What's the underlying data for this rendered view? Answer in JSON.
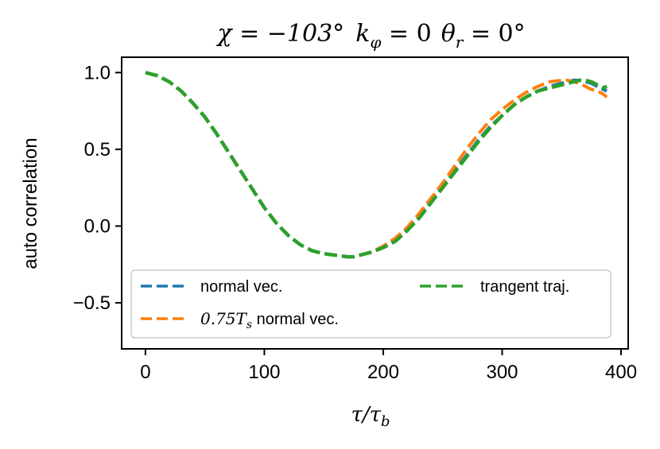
{
  "chart_data": {
    "type": "line",
    "title": "χ = −103° k_φ = 0 θ_r = 0°",
    "title_parts": {
      "chi": "χ = −103°",
      "k": "k",
      "k_sub": "φ",
      "k_val": " = 0",
      "theta": "θ",
      "theta_sub": "r",
      "theta_val": " = 0°"
    },
    "xlabel": "τ/τ",
    "xlabel_sub": "b",
    "ylabel": "auto correlation",
    "xlim": [
      -20,
      406
    ],
    "ylim": [
      -0.8,
      1.1
    ],
    "xticks": [
      0,
      100,
      200,
      300,
      400
    ],
    "xtick_labels": [
      "0",
      "100",
      "200",
      "300",
      "400"
    ],
    "yticks": [
      -0.5,
      0.0,
      0.5,
      1.0
    ],
    "ytick_labels": [
      "−0.5",
      "0.0",
      "0.5",
      "1.0"
    ],
    "grid": false,
    "legend_position": "lower-center",
    "series": [
      {
        "name": "normal vec.",
        "color": "#1f77b4",
        "style": "dashed",
        "x": [
          0,
          10,
          20,
          30,
          40,
          50,
          60,
          70,
          80,
          90,
          100,
          110,
          120,
          130,
          140,
          150,
          160,
          170,
          175,
          180,
          190,
          200,
          210,
          220,
          230,
          240,
          250,
          260,
          270,
          280,
          290,
          300,
          310,
          320,
          330,
          340,
          350,
          360,
          365,
          370,
          375,
          380,
          385,
          388
        ],
        "y": [
          1.0,
          0.98,
          0.94,
          0.88,
          0.8,
          0.71,
          0.6,
          0.48,
          0.36,
          0.24,
          0.12,
          0.02,
          -0.06,
          -0.12,
          -0.16,
          -0.18,
          -0.19,
          -0.2,
          -0.2,
          -0.19,
          -0.17,
          -0.14,
          -0.09,
          -0.02,
          0.06,
          0.16,
          0.26,
          0.36,
          0.46,
          0.56,
          0.65,
          0.72,
          0.79,
          0.84,
          0.88,
          0.91,
          0.93,
          0.95,
          0.95,
          0.94,
          0.93,
          0.91,
          0.89,
          0.88
        ]
      },
      {
        "name": "0.75T_s normal vec.",
        "name_parts": {
          "num": "0.75",
          "var": "T",
          "sub": "s",
          "rest": " normal vec."
        },
        "color": "#ff7f0e",
        "style": "dashed",
        "x": [
          0,
          10,
          20,
          30,
          40,
          50,
          60,
          70,
          80,
          90,
          100,
          110,
          120,
          130,
          140,
          150,
          160,
          170,
          175,
          180,
          190,
          200,
          210,
          220,
          230,
          240,
          250,
          260,
          270,
          280,
          290,
          300,
          310,
          320,
          330,
          340,
          350,
          355,
          360,
          365,
          370,
          375,
          380,
          385,
          388
        ],
        "y": [
          1.0,
          0.98,
          0.94,
          0.88,
          0.8,
          0.71,
          0.6,
          0.48,
          0.36,
          0.24,
          0.12,
          0.02,
          -0.06,
          -0.12,
          -0.16,
          -0.18,
          -0.19,
          -0.2,
          -0.2,
          -0.19,
          -0.17,
          -0.13,
          -0.08,
          -0.01,
          0.08,
          0.18,
          0.28,
          0.39,
          0.5,
          0.6,
          0.69,
          0.76,
          0.82,
          0.87,
          0.91,
          0.94,
          0.95,
          0.95,
          0.94,
          0.93,
          0.91,
          0.89,
          0.88,
          0.86,
          0.84
        ]
      },
      {
        "name": "trangent traj.",
        "color": "#2ca02c",
        "style": "dashed",
        "x": [
          0,
          10,
          20,
          30,
          40,
          50,
          60,
          70,
          80,
          90,
          100,
          110,
          120,
          130,
          140,
          150,
          160,
          170,
          175,
          180,
          190,
          200,
          210,
          220,
          230,
          240,
          250,
          260,
          270,
          280,
          290,
          300,
          310,
          320,
          330,
          340,
          350,
          360,
          365,
          370,
          375,
          380,
          385,
          388
        ],
        "y": [
          1.0,
          0.98,
          0.94,
          0.88,
          0.8,
          0.71,
          0.6,
          0.48,
          0.36,
          0.24,
          0.12,
          0.02,
          -0.06,
          -0.12,
          -0.16,
          -0.18,
          -0.19,
          -0.2,
          -0.2,
          -0.19,
          -0.17,
          -0.14,
          -0.1,
          -0.03,
          0.05,
          0.15,
          0.25,
          0.35,
          0.45,
          0.55,
          0.64,
          0.72,
          0.79,
          0.84,
          0.88,
          0.9,
          0.92,
          0.94,
          0.95,
          0.95,
          0.94,
          0.92,
          0.9,
          0.91
        ]
      }
    ]
  }
}
